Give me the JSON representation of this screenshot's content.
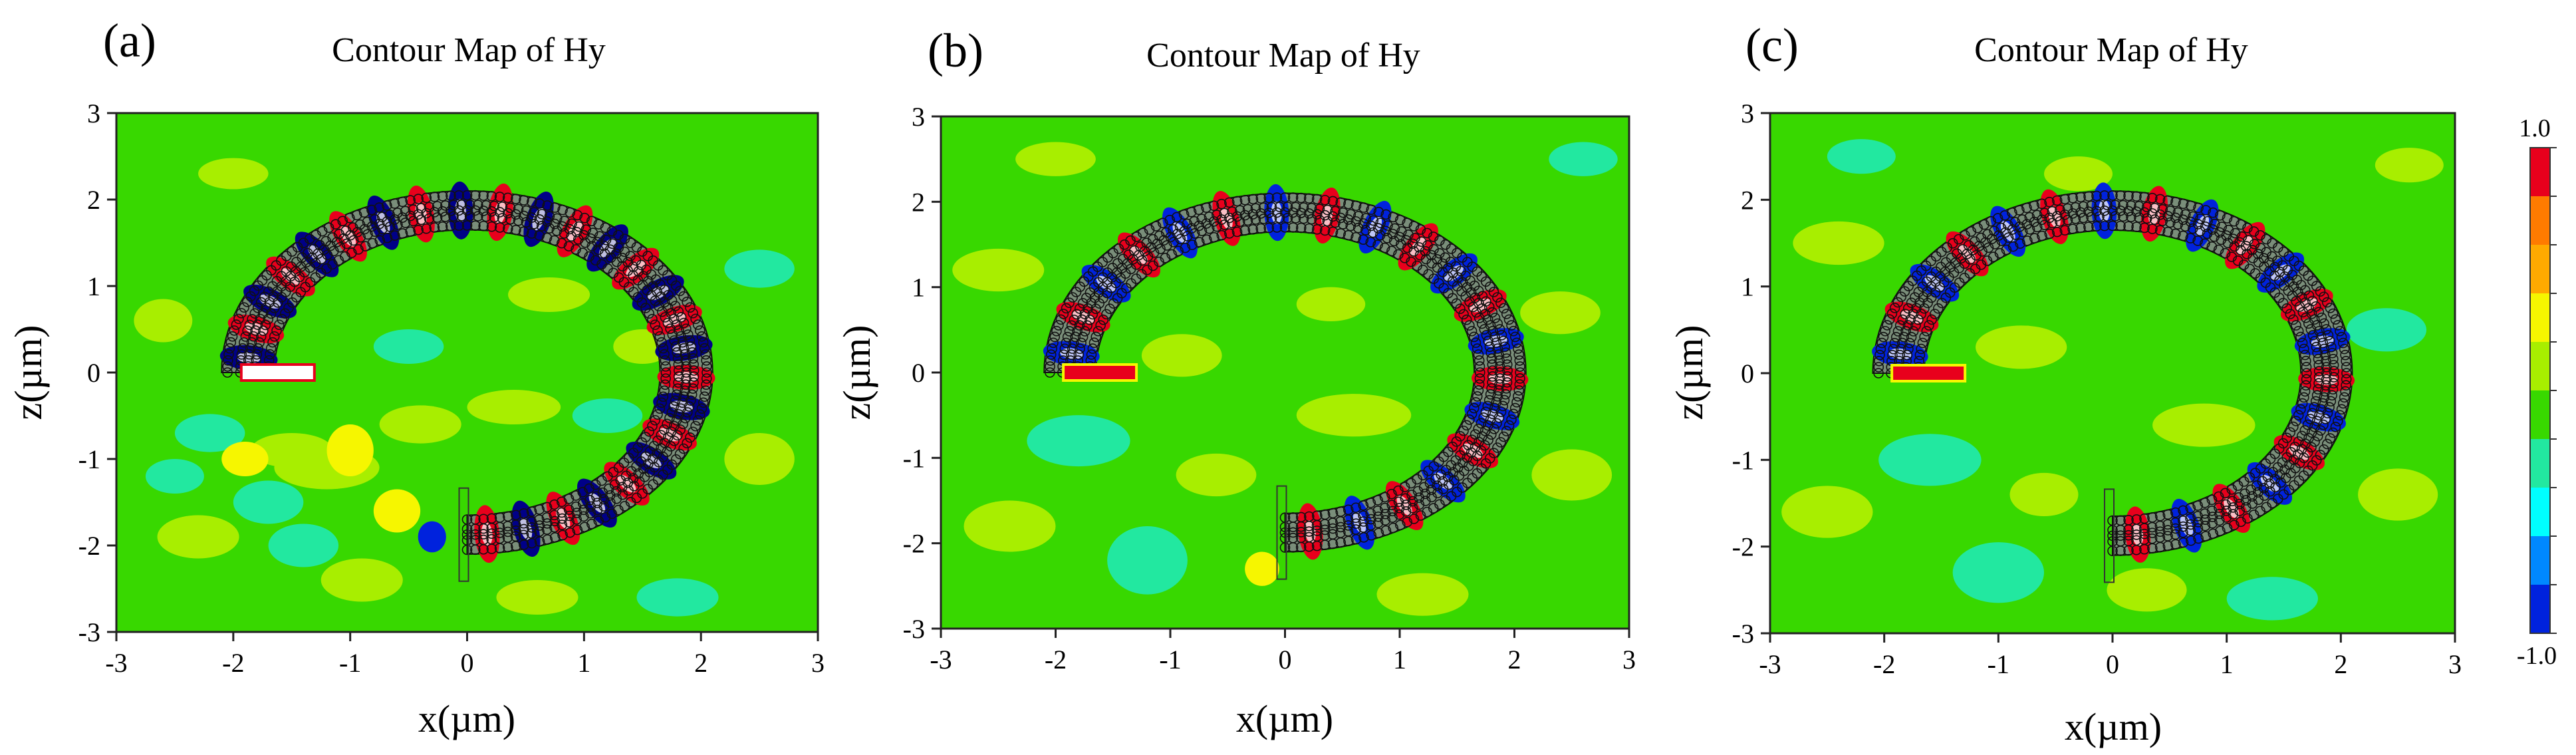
{
  "chart_data": [
    {
      "type": "heatmap",
      "panel_label": "(a)",
      "title": "Contour Map of Hy",
      "xlabel": "x(µm)",
      "ylabel": "z(µm)",
      "xlim": [
        -3,
        3
      ],
      "ylim": [
        -3,
        3
      ],
      "xticks": [
        -3,
        -2,
        -1,
        0,
        1,
        2,
        3
      ],
      "yticks": [
        -3,
        -2,
        -1,
        0,
        1,
        2,
        3
      ],
      "structure": {
        "shape": "semicircular bent waveguide",
        "center": [
          0,
          0
        ],
        "outer_radius": 2.1,
        "inner_radius": 1.65,
        "arc_start_deg": 180,
        "arc_end_deg": -90
      },
      "field_pattern": {
        "lobes": 26,
        "amplitude": 1.0
      }
    },
    {
      "type": "heatmap",
      "panel_label": "(b)",
      "title": "Contour Map of Hy",
      "xlabel": "x(µm)",
      "ylabel": "z(µm)",
      "xlim": [
        -3,
        3
      ],
      "ylim": [
        -3,
        3
      ],
      "xticks": [
        -3,
        -2,
        -1,
        0,
        1,
        2,
        3
      ],
      "yticks": [
        -3,
        -2,
        -1,
        0,
        1,
        2,
        3
      ],
      "structure": {
        "shape": "semicircular bent waveguide",
        "center": [
          0,
          0
        ],
        "outer_radius": 2.1,
        "inner_radius": 1.65,
        "arc_start_deg": 180,
        "arc_end_deg": -90
      },
      "field_pattern": {
        "lobes": 20,
        "amplitude": 0.85
      }
    },
    {
      "type": "heatmap",
      "panel_label": "(c)",
      "title": "Contour Map of Hy",
      "xlabel": "x(µm)",
      "ylabel": "z(µm)",
      "xlim": [
        -3,
        3
      ],
      "ylim": [
        -3,
        3
      ],
      "xticks": [
        -3,
        -2,
        -1,
        0,
        1,
        2,
        3
      ],
      "yticks": [
        -3,
        -2,
        -1,
        0,
        1,
        2,
        3
      ],
      "structure": {
        "shape": "semicircular bent waveguide",
        "center": [
          0,
          0
        ],
        "outer_radius": 2.1,
        "inner_radius": 1.65,
        "arc_start_deg": 180,
        "arc_end_deg": -90
      },
      "field_pattern": {
        "lobes": 20,
        "amplitude": 0.8
      }
    }
  ],
  "colorbar": {
    "max_label": "1.0",
    "min_label": "-1.0",
    "range": [
      -1.0,
      1.0
    ],
    "colors_top_to_bottom": [
      "#e8001c",
      "#ff7b00",
      "#ffaa00",
      "#f6f600",
      "#a8ee00",
      "#38d800",
      "#22e8a0",
      "#00ffff",
      "#0088ff",
      "#0022dd"
    ]
  },
  "colors": {
    "background_field": "#38d800",
    "light_green": "#a8ee00",
    "cyan_green": "#22e8a0",
    "yellow": "#f6f600",
    "red": "#e8001c",
    "blue": "#0022dd",
    "dark_blue": "#000088"
  }
}
